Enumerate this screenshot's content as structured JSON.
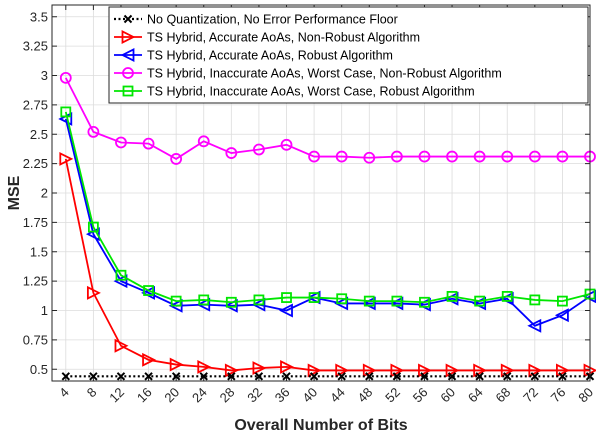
{
  "chart_data": {
    "type": "line",
    "title": "",
    "xlabel": "Overall Number of Bits",
    "ylabel": "MSE",
    "xlim": [
      2,
      80
    ],
    "ylim": [
      0.4,
      3.6
    ],
    "x_ticks": [
      4,
      8,
      12,
      16,
      20,
      24,
      28,
      32,
      36,
      40,
      44,
      48,
      52,
      56,
      60,
      64,
      68,
      72,
      76,
      80
    ],
    "y_ticks": [
      0.5,
      0.75,
      1,
      1.25,
      1.5,
      1.75,
      2,
      2.25,
      2.5,
      2.75,
      3,
      3.25,
      3.5
    ],
    "y_tick_labels": [
      "0.5",
      "0.75",
      "1",
      "1.25",
      "1.5",
      "1.75",
      "2",
      "2.25",
      "2.5",
      "2.75",
      "3",
      "3.25",
      "3.5"
    ],
    "grid": true,
    "legend_position": "top-right",
    "x": [
      4,
      8,
      12,
      16,
      20,
      24,
      28,
      32,
      36,
      40,
      44,
      48,
      52,
      56,
      60,
      64,
      68,
      72,
      76,
      80
    ],
    "series": [
      {
        "name": "No Quantization, No Error Performance Floor",
        "color": "#000000",
        "marker": "x",
        "dash": "dotted",
        "values": [
          0.44,
          0.44,
          0.44,
          0.44,
          0.44,
          0.44,
          0.44,
          0.44,
          0.44,
          0.44,
          0.44,
          0.44,
          0.44,
          0.44,
          0.44,
          0.44,
          0.44,
          0.44,
          0.44,
          0.44
        ]
      },
      {
        "name": "TS Hybrid, Accurate AoAs, Non-Robust Algorithm",
        "color": "#ff0000",
        "marker": "triangle-right",
        "dash": "solid",
        "values": [
          2.29,
          1.15,
          0.7,
          0.58,
          0.54,
          0.52,
          0.49,
          0.51,
          0.52,
          0.49,
          0.49,
          0.49,
          0.49,
          0.49,
          0.49,
          0.49,
          0.49,
          0.49,
          0.49,
          0.49
        ]
      },
      {
        "name": "TS Hybrid, Accurate AoAs, Robust Algorithm",
        "color": "#0000ff",
        "marker": "triangle-left",
        "dash": "solid",
        "values": [
          2.63,
          1.65,
          1.25,
          1.15,
          1.04,
          1.05,
          1.04,
          1.05,
          1.0,
          1.11,
          1.06,
          1.06,
          1.06,
          1.05,
          1.1,
          1.06,
          1.1,
          0.87,
          0.96,
          1.12
        ]
      },
      {
        "name": "TS Hybrid, Inaccurate AoAs, Worst Case, Non-Robust Algorithm",
        "color": "#ff00ff",
        "marker": "circle",
        "dash": "solid",
        "values": [
          2.98,
          2.52,
          2.43,
          2.42,
          2.29,
          2.44,
          2.34,
          2.37,
          2.41,
          2.31,
          2.31,
          2.3,
          2.31,
          2.31,
          2.31,
          2.31,
          2.31,
          2.31,
          2.31,
          2.31
        ]
      },
      {
        "name": "TS Hybrid, Inaccurate AoAs, Worst Case, Robust Algorithm",
        "color": "#00e600",
        "marker": "square",
        "dash": "solid",
        "values": [
          2.69,
          1.71,
          1.3,
          1.17,
          1.08,
          1.09,
          1.07,
          1.09,
          1.11,
          1.11,
          1.1,
          1.08,
          1.08,
          1.07,
          1.12,
          1.08,
          1.12,
          1.09,
          1.08,
          1.14
        ]
      }
    ]
  }
}
